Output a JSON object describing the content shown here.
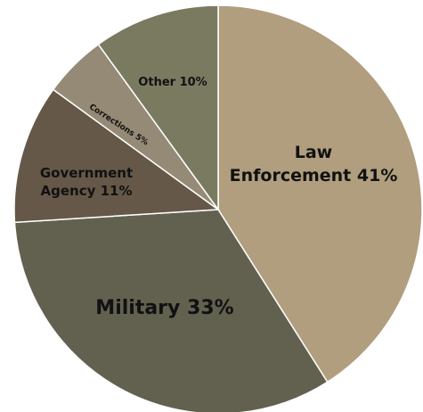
{
  "chart_data": {
    "type": "pie",
    "start_angle_deg": 0,
    "direction": "clockwise",
    "slices": [
      {
        "label": "Law Enforcement",
        "value": 41,
        "display_lines": [
          "Law",
          "Enforcement 41%"
        ],
        "color": "#b09e7e"
      },
      {
        "label": "Military",
        "value": 33,
        "display_lines": [
          "Military 33%"
        ],
        "color": "#626150"
      },
      {
        "label": "Government Agency",
        "value": 11,
        "display_lines": [
          "Government",
          "Agency 11%"
        ],
        "color": "#655848"
      },
      {
        "label": "Corrections",
        "value": 5,
        "display_lines": [
          "Corrections 5%"
        ],
        "color": "#958a75"
      },
      {
        "label": "Other",
        "value": 10,
        "display_lines": [
          "Other 10%"
        ],
        "color": "#797a60"
      }
    ]
  }
}
